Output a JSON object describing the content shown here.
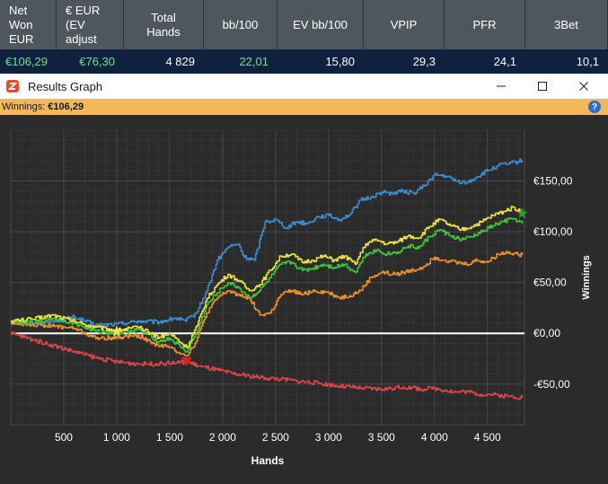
{
  "stats": {
    "headers": [
      "Net\nWon\nEUR",
      "€ EUR\n(EV\nadjust",
      "Total\nHands",
      "bb/100",
      "EV bb/100",
      "VPIP",
      "PFR",
      "3Bet"
    ],
    "values": [
      "€106,29",
      "€76,30",
      "4 829",
      "22,01",
      "15,80",
      "29,3",
      "24,1",
      "10,1"
    ],
    "value_colors": [
      "#6fe08a",
      "#6fe08a",
      "#ffffff",
      "#6fe08a",
      "#ffffff",
      "#ffffff",
      "#ffffff",
      "#ffffff"
    ]
  },
  "window": {
    "title": "Results Graph",
    "icon": "app-logo-icon",
    "controls": [
      "minimize-icon",
      "maximize-icon",
      "close-icon"
    ]
  },
  "winnings_bar": {
    "label": "Winnings:",
    "amount": "€106,29",
    "help_icon": "help-icon"
  },
  "chart_data": {
    "type": "line",
    "xlabel": "Hands",
    "ylabel": "Winnings",
    "xlim": [
      0,
      4850
    ],
    "ylim": [
      -90,
      200
    ],
    "x_ticks": [
      500,
      1000,
      1500,
      2000,
      2500,
      3000,
      3500,
      4000,
      4500
    ],
    "x_tick_labels": [
      "500",
      "1 000",
      "1 500",
      "2 000",
      "2 500",
      "3 000",
      "3 500",
      "4 000",
      "4 500"
    ],
    "y_ticks": [
      150,
      100,
      50,
      0,
      -50
    ],
    "y_tick_labels": [
      "€150,00",
      "€100,00",
      "€50,00",
      "€0,00",
      "-€50,00"
    ],
    "grid": true,
    "background": "#2b2b2b",
    "zero_line_color": "#ffffff",
    "series": [
      {
        "color": "#3a8ad0",
        "points": [
          [
            0,
            12
          ],
          [
            300,
            10
          ],
          [
            600,
            16
          ],
          [
            800,
            8
          ],
          [
            1000,
            9
          ],
          [
            1200,
            12
          ],
          [
            1400,
            11
          ],
          [
            1550,
            15
          ],
          [
            1650,
            12
          ],
          [
            1750,
            20
          ],
          [
            1850,
            42
          ],
          [
            1950,
            72
          ],
          [
            2050,
            85
          ],
          [
            2150,
            88
          ],
          [
            2200,
            75
          ],
          [
            2300,
            72
          ],
          [
            2400,
            110
          ],
          [
            2500,
            112
          ],
          [
            2600,
            104
          ],
          [
            2700,
            110
          ],
          [
            2800,
            108
          ],
          [
            2900,
            115
          ],
          [
            3000,
            116
          ],
          [
            3100,
            112
          ],
          [
            3200,
            117
          ],
          [
            3300,
            131
          ],
          [
            3400,
            134
          ],
          [
            3500,
            139
          ],
          [
            3600,
            138
          ],
          [
            3700,
            140
          ],
          [
            3800,
            138
          ],
          [
            3900,
            145
          ],
          [
            4000,
            156
          ],
          [
            4100,
            155
          ],
          [
            4200,
            150
          ],
          [
            4300,
            148
          ],
          [
            4400,
            154
          ],
          [
            4500,
            160
          ],
          [
            4600,
            165
          ],
          [
            4700,
            167
          ],
          [
            4829,
            170
          ]
        ]
      },
      {
        "color": "#e88d2c",
        "points": [
          [
            0,
            10
          ],
          [
            300,
            8
          ],
          [
            600,
            5
          ],
          [
            800,
            -5
          ],
          [
            1000,
            -4
          ],
          [
            1200,
            -2
          ],
          [
            1350,
            -10
          ],
          [
            1500,
            -14
          ],
          [
            1660,
            -22
          ],
          [
            1750,
            -8
          ],
          [
            1850,
            20
          ],
          [
            1950,
            35
          ],
          [
            2050,
            42
          ],
          [
            2150,
            38
          ],
          [
            2250,
            35
          ],
          [
            2350,
            18
          ],
          [
            2450,
            20
          ],
          [
            2550,
            38
          ],
          [
            2650,
            42
          ],
          [
            2750,
            38
          ],
          [
            2850,
            42
          ],
          [
            3000,
            40
          ],
          [
            3100,
            35
          ],
          [
            3200,
            37
          ],
          [
            3300,
            42
          ],
          [
            3400,
            55
          ],
          [
            3500,
            60
          ],
          [
            3600,
            58
          ],
          [
            3700,
            60
          ],
          [
            3800,
            62
          ],
          [
            3900,
            66
          ],
          [
            4000,
            75
          ],
          [
            4100,
            72
          ],
          [
            4200,
            70
          ],
          [
            4300,
            68
          ],
          [
            4400,
            72
          ],
          [
            4500,
            70
          ],
          [
            4600,
            78
          ],
          [
            4700,
            80
          ],
          [
            4829,
            77
          ]
        ]
      },
      {
        "color": "#3ec13e",
        "points": [
          [
            0,
            12
          ],
          [
            200,
            10
          ],
          [
            400,
            15
          ],
          [
            600,
            10
          ],
          [
            800,
            2
          ],
          [
            1000,
            0
          ],
          [
            1200,
            4
          ],
          [
            1400,
            -8
          ],
          [
            1500,
            -5
          ],
          [
            1660,
            -18
          ],
          [
            1760,
            2
          ],
          [
            1850,
            28
          ],
          [
            1950,
            40
          ],
          [
            2050,
            50
          ],
          [
            2150,
            45
          ],
          [
            2250,
            35
          ],
          [
            2350,
            42
          ],
          [
            2450,
            55
          ],
          [
            2550,
            68
          ],
          [
            2650,
            70
          ],
          [
            2750,
            62
          ],
          [
            2850,
            64
          ],
          [
            2950,
            68
          ],
          [
            3050,
            65
          ],
          [
            3150,
            68
          ],
          [
            3250,
            60
          ],
          [
            3350,
            78
          ],
          [
            3450,
            82
          ],
          [
            3550,
            78
          ],
          [
            3650,
            80
          ],
          [
            3750,
            86
          ],
          [
            3850,
            84
          ],
          [
            3950,
            95
          ],
          [
            4050,
            102
          ],
          [
            4150,
            96
          ],
          [
            4250,
            92
          ],
          [
            4350,
            95
          ],
          [
            4450,
            100
          ],
          [
            4550,
            106
          ],
          [
            4650,
            110
          ],
          [
            4750,
            113
          ],
          [
            4829,
            108
          ]
        ]
      },
      {
        "color": "#e8e040",
        "points": [
          [
            0,
            12
          ],
          [
            200,
            14
          ],
          [
            400,
            18
          ],
          [
            600,
            12
          ],
          [
            800,
            6
          ],
          [
            1000,
            3
          ],
          [
            1200,
            6
          ],
          [
            1400,
            -4
          ],
          [
            1500,
            0
          ],
          [
            1660,
            -14
          ],
          [
            1760,
            8
          ],
          [
            1850,
            34
          ],
          [
            1950,
            48
          ],
          [
            2050,
            58
          ],
          [
            2150,
            52
          ],
          [
            2250,
            42
          ],
          [
            2350,
            48
          ],
          [
            2450,
            62
          ],
          [
            2550,
            76
          ],
          [
            2650,
            78
          ],
          [
            2750,
            70
          ],
          [
            2850,
            72
          ],
          [
            2950,
            76
          ],
          [
            3050,
            72
          ],
          [
            3150,
            76
          ],
          [
            3250,
            68
          ],
          [
            3350,
            88
          ],
          [
            3450,
            92
          ],
          [
            3550,
            88
          ],
          [
            3650,
            90
          ],
          [
            3750,
            96
          ],
          [
            3850,
            94
          ],
          [
            3950,
            105
          ],
          [
            4050,
            112
          ],
          [
            4150,
            106
          ],
          [
            4250,
            102
          ],
          [
            4350,
            105
          ],
          [
            4450,
            110
          ],
          [
            4550,
            116
          ],
          [
            4650,
            120
          ],
          [
            4750,
            124
          ],
          [
            4829,
            118
          ]
        ]
      },
      {
        "color": "#d94444",
        "points": [
          [
            0,
            0
          ],
          [
            200,
            -6
          ],
          [
            400,
            -12
          ],
          [
            600,
            -18
          ],
          [
            800,
            -24
          ],
          [
            1000,
            -28
          ],
          [
            1200,
            -30
          ],
          [
            1400,
            -30
          ],
          [
            1550,
            -29
          ],
          [
            1660,
            -28
          ],
          [
            1800,
            -33
          ],
          [
            1950,
            -36
          ],
          [
            2100,
            -40
          ],
          [
            2250,
            -42
          ],
          [
            2400,
            -44
          ],
          [
            2550,
            -45
          ],
          [
            2700,
            -47
          ],
          [
            2900,
            -49
          ],
          [
            3100,
            -52
          ],
          [
            3300,
            -54
          ],
          [
            3500,
            -55
          ],
          [
            3700,
            -53
          ],
          [
            3900,
            -55
          ],
          [
            4000,
            -54
          ],
          [
            4100,
            -56
          ],
          [
            4200,
            -58
          ],
          [
            4300,
            -57
          ],
          [
            4400,
            -60
          ],
          [
            4500,
            -60
          ],
          [
            4600,
            -61
          ],
          [
            4700,
            -62
          ],
          [
            4829,
            -63
          ]
        ]
      }
    ],
    "markers": [
      {
        "type": "star",
        "x": 1000,
        "y": 2,
        "color": "#ffe34a"
      },
      {
        "type": "triangle-down",
        "x": 1660,
        "y": -28,
        "color": "#d42020"
      },
      {
        "type": "star",
        "x": 4829,
        "y": 118,
        "color": "#2e9a2e"
      }
    ]
  }
}
